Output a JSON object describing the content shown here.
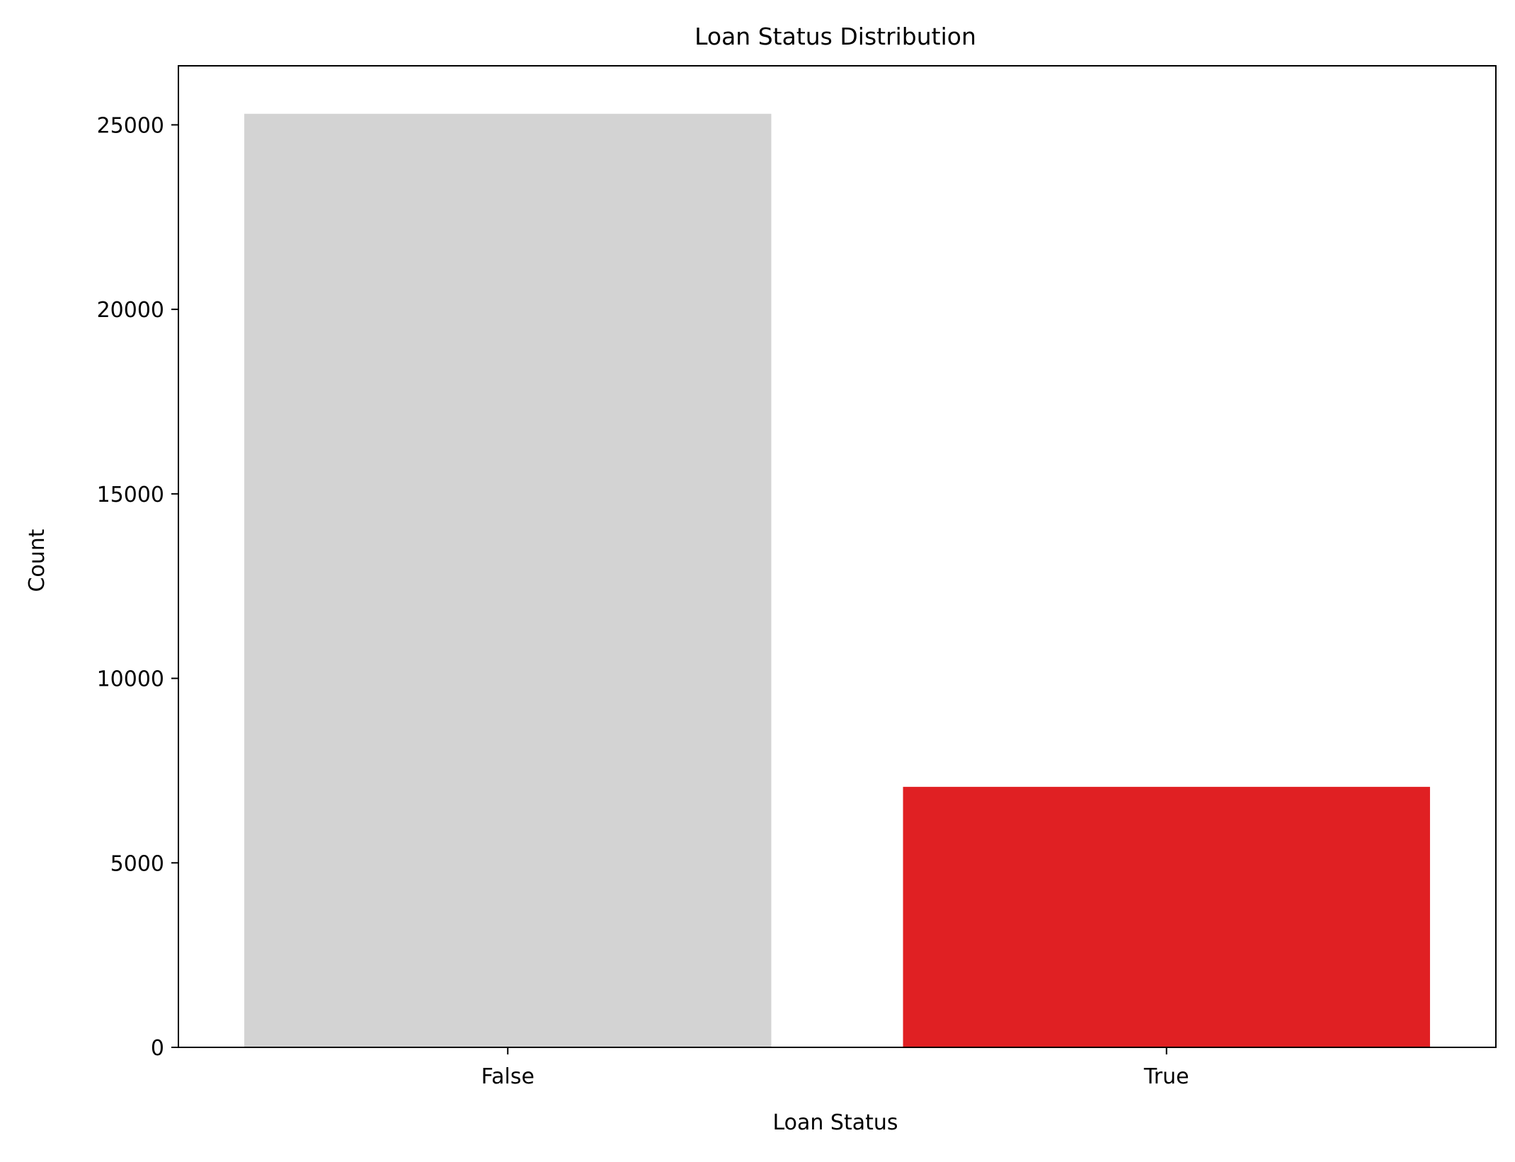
{
  "chart_data": {
    "type": "bar",
    "title": "Loan Status Distribution",
    "xlabel": "Loan Status",
    "ylabel": "Count",
    "categories": [
      "False",
      "True"
    ],
    "values": [
      25300,
      7060
    ],
    "bar_colors": [
      "#d3d3d3",
      "#e02023"
    ],
    "ylim": [
      0,
      26600
    ],
    "yticks": [
      0,
      5000,
      10000,
      15000,
      20000,
      25000
    ],
    "ytick_labels": [
      "0",
      "5000",
      "10000",
      "15000",
      "20000",
      "25000"
    ],
    "grid": false,
    "legend": "none"
  }
}
